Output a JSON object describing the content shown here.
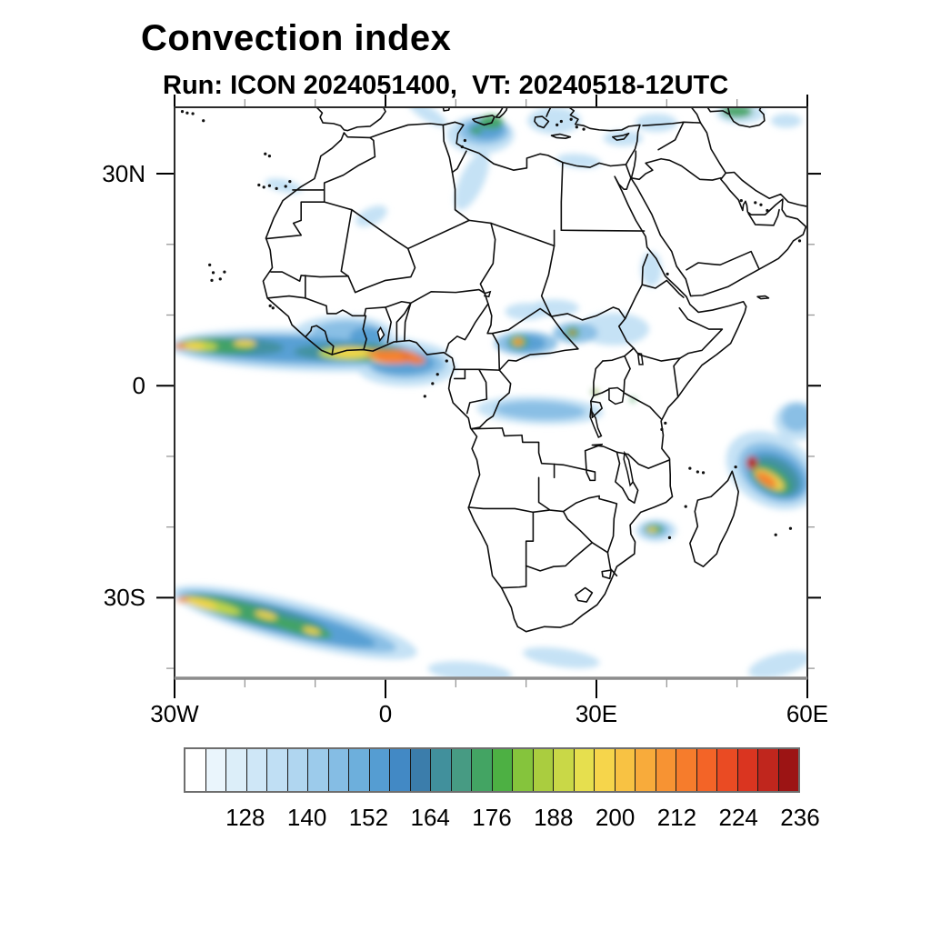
{
  "title": "Convection index",
  "subtitle": "Run: ICON 2024051400,  VT: 20240518-12UTC",
  "map": {
    "x_axis": {
      "labels": [
        {
          "text": "30W",
          "lon": -30
        },
        {
          "text": "0",
          "lon": 0
        },
        {
          "text": "30E",
          "lon": 30
        },
        {
          "text": "60E",
          "lon": 60
        }
      ],
      "major_ticks_lon": [
        -30,
        0,
        30,
        60
      ],
      "minor_ticks_lon": [
        -20,
        -10,
        10,
        20,
        40,
        50
      ]
    },
    "y_axis": {
      "labels": [
        {
          "text": "30N",
          "lat": 30
        },
        {
          "text": "0",
          "lat": 0
        },
        {
          "text": "30S",
          "lat": -30
        }
      ],
      "major_ticks_lat": [
        30,
        0,
        -30
      ],
      "minor_ticks_lat": [
        20,
        10,
        -10,
        -20,
        -40
      ]
    }
  },
  "colorbar": {
    "labels": [
      "128",
      "140",
      "152",
      "164",
      "176",
      "188",
      "200",
      "212",
      "224",
      "236"
    ],
    "value_min": 116,
    "value_step": 4,
    "cells": 30,
    "palette": [
      "#ffffff",
      "#eaf5fc",
      "#dceef9",
      "#cfe7f7",
      "#c0dff4",
      "#b0d6f0",
      "#9ccbeb",
      "#85bde4",
      "#6dafdc",
      "#559dd2",
      "#4289c5",
      "#3b7dab",
      "#41909c",
      "#479b83",
      "#43a463",
      "#4db043",
      "#85c43c",
      "#aacd3f",
      "#c9d847",
      "#e6df4e",
      "#f6d54b",
      "#f8c243",
      "#f8ab3b",
      "#f79333",
      "#f67c2c",
      "#f36427",
      "#ea4b23",
      "#da3520",
      "#c0261d",
      "#9c1414"
    ]
  },
  "chart_data": {
    "type": "heatmap",
    "title": "Convection index",
    "model": "ICON",
    "run": "2024051400",
    "valid_time": "20240518-12UTC",
    "lon_range": [
      -30,
      60
    ],
    "lat_range": [
      -41.4,
      39.4
    ],
    "grid": "ticks every 10 degrees, labels every 30 degrees",
    "scale": {
      "min": 116,
      "max": 236,
      "step": 4,
      "labeled_values": [
        128,
        140,
        152,
        164,
        176,
        188,
        200,
        212,
        224,
        236
      ]
    },
    "features_format": "[lon_deg, lat_deg, radius_lon_deg, radius_lat_deg, rotation_deg, convection_index_value]",
    "features": [
      [
        -11,
        5,
        20,
        3,
        2,
        132
      ],
      [
        -6,
        7.5,
        7,
        2.4,
        0,
        132
      ],
      [
        3,
        2.5,
        7,
        2.6,
        0,
        132
      ],
      [
        13.5,
        35.5,
        4.8,
        2.7,
        0,
        132
      ],
      [
        12.3,
        29,
        1.7,
        4.5,
        25,
        132
      ],
      [
        6,
        38.5,
        3.2,
        1,
        32,
        132
      ],
      [
        27.5,
        31.8,
        3.2,
        1,
        5,
        132
      ],
      [
        33.8,
        35,
        2.8,
        1.1,
        0,
        132
      ],
      [
        38.5,
        37.2,
        3,
        1.3,
        0,
        132
      ],
      [
        -14.5,
        28.3,
        2.7,
        0.9,
        12,
        132
      ],
      [
        22,
        -3.5,
        9,
        2,
        2,
        132
      ],
      [
        32.5,
        8,
        5,
        2.3,
        0,
        132
      ],
      [
        24,
        11,
        3.5,
        1.2,
        0,
        132
      ],
      [
        20,
        10.5,
        3,
        1.2,
        0,
        132
      ],
      [
        37.8,
        16.5,
        1.5,
        2.5,
        0,
        132
      ],
      [
        58.5,
        -5,
        3.2,
        2.8,
        0,
        132
      ],
      [
        55,
        -12,
        7,
        5,
        30,
        132
      ],
      [
        38.5,
        -20.5,
        2.9,
        1.6,
        0,
        132
      ],
      [
        -13,
        -33.5,
        18,
        3,
        14,
        132
      ],
      [
        25,
        -38.5,
        5.5,
        1.3,
        8,
        132
      ],
      [
        56,
        -39.5,
        4.5,
        1.6,
        -15,
        132
      ],
      [
        12,
        -40.5,
        6,
        1.4,
        5,
        132
      ],
      [
        24,
        37.5,
        3.8,
        1.9,
        0,
        132
      ],
      [
        50.5,
        38.5,
        3.4,
        1.4,
        0,
        132
      ],
      [
        57,
        37.5,
        2.2,
        1,
        0,
        132
      ],
      [
        -2,
        24,
        2.4,
        1.2,
        -25,
        132
      ],
      [
        -12,
        5,
        18,
        2.2,
        2,
        144
      ],
      [
        -5.5,
        7.5,
        5,
        1.7,
        0,
        144
      ],
      [
        3,
        3,
        5.5,
        2,
        0,
        144
      ],
      [
        14,
        36,
        3.6,
        1.9,
        0,
        144
      ],
      [
        55.3,
        -12.3,
        5.5,
        3.8,
        30,
        144
      ],
      [
        -14,
        -33.3,
        16,
        2.2,
        14,
        144
      ],
      [
        22,
        -3.5,
        6.5,
        1.3,
        2,
        144
      ],
      [
        20,
        6,
        4.5,
        1.7,
        0,
        144
      ],
      [
        27,
        7.5,
        3.2,
        1.5,
        0,
        144
      ],
      [
        38.4,
        -20.4,
        2,
        1.1,
        0,
        144
      ],
      [
        58.5,
        -4.5,
        2.2,
        2,
        0,
        144
      ],
      [
        -13,
        5.2,
        15,
        1.8,
        2,
        152
      ],
      [
        -2.5,
        7,
        2.6,
        1.3,
        0,
        152
      ],
      [
        2.5,
        3.2,
        4.5,
        1.6,
        0,
        152
      ],
      [
        -20,
        5.5,
        6,
        1.3,
        0,
        152
      ],
      [
        55.5,
        -12.6,
        4.6,
        3,
        30,
        152
      ],
      [
        -15,
        -33.2,
        14,
        1.8,
        14,
        152
      ],
      [
        14.3,
        36.3,
        2.6,
        1.4,
        0,
        152
      ],
      [
        20,
        6,
        2.8,
        1.2,
        0,
        152
      ],
      [
        -22,
        5.6,
        7.5,
        1.3,
        2,
        164
      ],
      [
        -5,
        4.8,
        8,
        1.3,
        0,
        164
      ],
      [
        55.4,
        -12.8,
        3.8,
        2.4,
        30,
        164
      ],
      [
        -18,
        -32.3,
        10,
        1.5,
        14,
        164
      ],
      [
        -24,
        5.6,
        5.5,
        1.1,
        2,
        174
      ],
      [
        -3,
        4.5,
        6.5,
        1.1,
        0,
        174
      ],
      [
        -21,
        -31.8,
        8,
        1.2,
        14,
        174
      ],
      [
        15,
        37.3,
        1.8,
        1,
        0,
        174
      ],
      [
        12.9,
        36.1,
        0.9,
        0.5,
        0,
        174
      ],
      [
        50,
        38.8,
        2.2,
        0.9,
        0,
        174
      ],
      [
        54.8,
        -13.2,
        3.2,
        1.7,
        30,
        174
      ],
      [
        38.2,
        -20.3,
        1.3,
        0.7,
        0,
        174
      ],
      [
        18.9,
        6.2,
        1.4,
        1,
        0,
        174
      ],
      [
        26.6,
        7.5,
        1,
        0.8,
        0,
        174
      ],
      [
        -12,
        -34.3,
        4.5,
        1,
        14,
        174
      ],
      [
        29.8,
        -0.9,
        0.5,
        0.4,
        0,
        174
      ],
      [
        35.2,
        -2,
        0.4,
        0.3,
        0,
        174
      ],
      [
        -26.5,
        5.6,
        2.6,
        0.7,
        2,
        190
      ],
      [
        -5.5,
        4.6,
        4,
        0.9,
        0,
        190
      ],
      [
        -24.5,
        -31.2,
        4,
        0.8,
        14,
        190
      ],
      [
        -27.5,
        5.6,
        1.8,
        0.55,
        0,
        198
      ],
      [
        -20,
        6,
        1.6,
        0.5,
        0,
        198
      ],
      [
        -5,
        4.7,
        2.8,
        0.7,
        0,
        198
      ],
      [
        0.5,
        3.9,
        2.6,
        0.8,
        0,
        198
      ],
      [
        -26.5,
        -30.7,
        2.6,
        0.6,
        14,
        198
      ],
      [
        -17,
        -32.5,
        1.6,
        0.5,
        14,
        198
      ],
      [
        -10.5,
        -34.7,
        1.3,
        0.45,
        14,
        198
      ],
      [
        54.6,
        -13.3,
        2.4,
        1,
        32,
        198
      ],
      [
        37.9,
        -20.4,
        0.8,
        0.35,
        0,
        198
      ],
      [
        18.85,
        6.2,
        0.8,
        0.55,
        0,
        198
      ],
      [
        29.9,
        -0.9,
        0.25,
        0.2,
        0,
        198
      ],
      [
        1.5,
        4.1,
        3.2,
        1,
        0,
        214
      ],
      [
        4.5,
        3.6,
        1.2,
        0.6,
        0,
        214
      ],
      [
        -1.2,
        4.5,
        1.5,
        0.6,
        0,
        210
      ],
      [
        -29.2,
        5.6,
        0.9,
        0.45,
        0,
        210
      ],
      [
        -28.8,
        -30.3,
        0.9,
        0.4,
        0,
        210
      ],
      [
        54.2,
        -13.3,
        1.7,
        0.7,
        35,
        212
      ],
      [
        18.9,
        6.2,
        0.55,
        0.4,
        0,
        210
      ],
      [
        26.6,
        7.5,
        0.35,
        0.3,
        0,
        210
      ],
      [
        18.9,
        6.15,
        0.32,
        0.24,
        0,
        224
      ],
      [
        52.1,
        -10.9,
        0.8,
        0.95,
        0,
        224
      ],
      [
        2.8,
        4.2,
        0.3,
        0.2,
        0,
        224
      ],
      [
        52.05,
        -10.75,
        0.5,
        0.6,
        0,
        234
      ]
    ]
  }
}
